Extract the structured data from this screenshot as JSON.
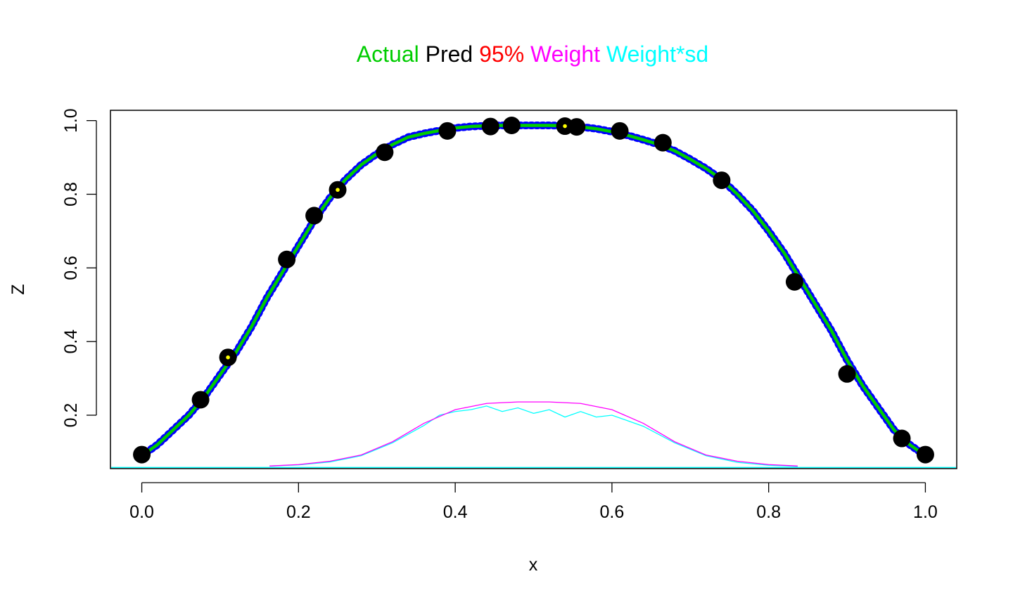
{
  "chart_data": {
    "type": "line",
    "title_parts": [
      {
        "text": "Actual",
        "color": "#00cd00"
      },
      {
        "text": "Pred",
        "color": "#000000"
      },
      {
        "text": "95%",
        "color": "#ff0000"
      },
      {
        "text": "Weight",
        "color": "#ff00ff"
      },
      {
        "text": "Weight*sd",
        "color": "#00ffff"
      }
    ],
    "xlabel": "x",
    "ylabel": "Z",
    "xlim": [
      -0.04,
      1.04
    ],
    "ylim": [
      0.055,
      1.028
    ],
    "x_ticks": [
      0.0,
      0.2,
      0.4,
      0.6,
      0.8,
      1.0
    ],
    "x_tick_labels": [
      "0.0",
      "0.2",
      "0.4",
      "0.6",
      "0.8",
      "1.0"
    ],
    "y_ticks": [
      0.2,
      0.4,
      0.6,
      0.8,
      1.0
    ],
    "y_tick_labels": [
      "0.2",
      "0.4",
      "0.6",
      "0.8",
      "1.0"
    ],
    "grid": false,
    "legend": "title",
    "series": [
      {
        "name": "Actual",
        "color": "#00cd00",
        "x": [
          0.0,
          0.02,
          0.04,
          0.06,
          0.08,
          0.1,
          0.12,
          0.14,
          0.16,
          0.18,
          0.2,
          0.22,
          0.24,
          0.26,
          0.28,
          0.3,
          0.32,
          0.34,
          0.36,
          0.38,
          0.4,
          0.42,
          0.44,
          0.46,
          0.48,
          0.5,
          0.52,
          0.54,
          0.56,
          0.58,
          0.6,
          0.62,
          0.64,
          0.66,
          0.68,
          0.7,
          0.72,
          0.74,
          0.76,
          0.78,
          0.8,
          0.82,
          0.84,
          0.86,
          0.88,
          0.9,
          0.92,
          0.94,
          0.96,
          0.98,
          1.0
        ],
        "y": [
          0.09,
          0.12,
          0.16,
          0.2,
          0.25,
          0.31,
          0.37,
          0.44,
          0.52,
          0.59,
          0.66,
          0.73,
          0.79,
          0.84,
          0.88,
          0.91,
          0.935,
          0.955,
          0.965,
          0.973,
          0.98,
          0.984,
          0.986,
          0.987,
          0.987,
          0.987,
          0.987,
          0.986,
          0.983,
          0.978,
          0.97,
          0.96,
          0.948,
          0.935,
          0.918,
          0.895,
          0.87,
          0.84,
          0.8,
          0.755,
          0.7,
          0.64,
          0.57,
          0.5,
          0.43,
          0.35,
          0.28,
          0.22,
          0.16,
          0.12,
          0.09
        ]
      },
      {
        "name": "Pred",
        "color": "#000000",
        "x": [
          0.0,
          0.075,
          0.11,
          0.185,
          0.22,
          0.25,
          0.31,
          0.39,
          0.445,
          0.472,
          0.54,
          0.555,
          0.61,
          0.665,
          0.74,
          0.833,
          0.9,
          0.97,
          1.0
        ],
        "y": [
          0.093,
          0.242,
          0.357,
          0.623,
          0.742,
          0.812,
          0.914,
          0.972,
          0.984,
          0.987,
          0.985,
          0.983,
          0.972,
          0.94,
          0.838,
          0.562,
          0.312,
          0.137,
          0.093
        ]
      },
      {
        "name": "Weight",
        "color": "#ff00ff",
        "x": [
          0.163,
          0.2,
          0.24,
          0.28,
          0.32,
          0.36,
          0.4,
          0.44,
          0.48,
          0.52,
          0.56,
          0.6,
          0.64,
          0.68,
          0.72,
          0.76,
          0.8,
          0.837
        ],
        "y": [
          0.062,
          0.066,
          0.075,
          0.092,
          0.128,
          0.178,
          0.215,
          0.232,
          0.236,
          0.236,
          0.232,
          0.215,
          0.178,
          0.128,
          0.092,
          0.075,
          0.066,
          0.062
        ]
      },
      {
        "name": "Weight*sd",
        "color": "#00ffff",
        "x": [
          0.163,
          0.2,
          0.24,
          0.28,
          0.32,
          0.36,
          0.38,
          0.4,
          0.42,
          0.44,
          0.46,
          0.48,
          0.5,
          0.52,
          0.54,
          0.56,
          0.58,
          0.6,
          0.62,
          0.64,
          0.68,
          0.72,
          0.76,
          0.8,
          0.837
        ],
        "y": [
          0.062,
          0.065,
          0.073,
          0.09,
          0.125,
          0.172,
          0.2,
          0.21,
          0.215,
          0.225,
          0.21,
          0.22,
          0.205,
          0.215,
          0.195,
          0.21,
          0.195,
          0.2,
          0.185,
          0.17,
          0.125,
          0.09,
          0.072,
          0.064,
          0.061
        ]
      }
    ],
    "baseline": {
      "y": 0.058,
      "color": "#00ffff"
    },
    "highlight_points": {
      "color": "#ffff00",
      "x": [
        0.11,
        0.25,
        0.54
      ],
      "y": [
        0.357,
        0.812,
        0.985
      ]
    }
  }
}
